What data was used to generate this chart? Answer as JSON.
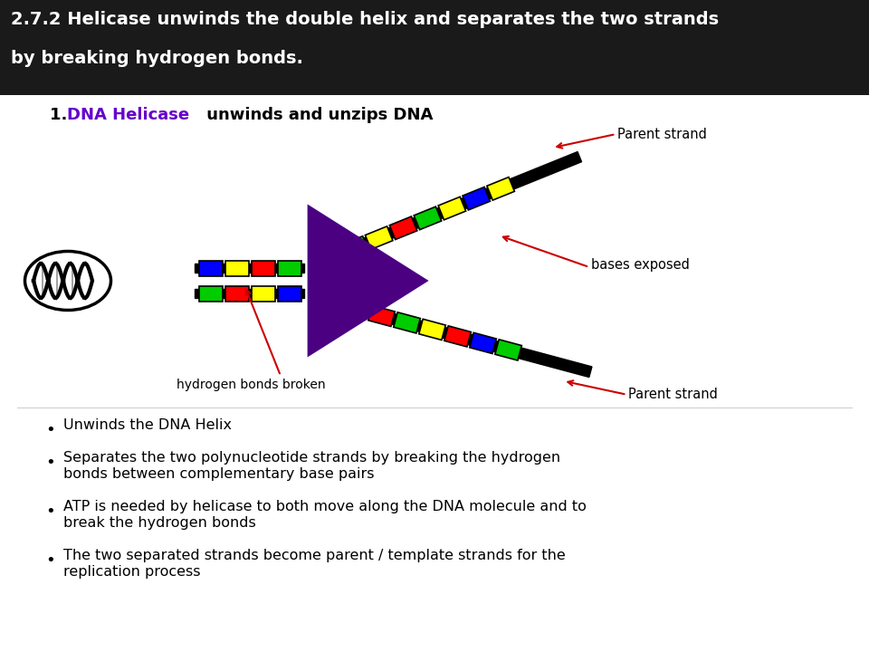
{
  "title_line1": "2.7.2 Helicase unwinds the double helix and separates the two strands",
  "title_line2": "by breaking hydrogen bonds.",
  "subtitle_plain1": "1. ",
  "subtitle_purple": "DNA Helicase",
  "subtitle_plain2": " unwinds and unzips DNA",
  "subtitle_color": "#6600cc",
  "title_bg": "#1a1a1a",
  "title_color": "#ffffff",
  "bullet_points": [
    "Unwinds the DNA Helix",
    "Separates the two polynucleotide strands by breaking the hydrogen\nbonds between complementary base pairs",
    "ATP is needed by helicase to both move along the DNA molecule and to\nbreak the hydrogen bonds",
    "The two separated strands become parent / template strands for the\nreplication process"
  ],
  "helicase_color": "#4b0082",
  "strand_color": "#000000",
  "annotation_color": "#cc0000",
  "bg_color": "#ffffff",
  "junction_colors_top": [
    "#0000ff",
    "#ffff00",
    "#ff0000",
    "#00cc00"
  ],
  "junction_colors_bot": [
    "#00cc00",
    "#ff0000",
    "#ffff00",
    "#0000ff"
  ],
  "top_strand_colors": [
    "#ff0000",
    "#00cc00",
    "#ffff00",
    "#ff0000",
    "#00cc00",
    "#ffff00",
    "#0000ff",
    "#ffff00"
  ],
  "bot_strand_colors": [
    "#ffff00",
    "#0000ff",
    "#ff0000",
    "#00cc00",
    "#ffff00",
    "#ff0000",
    "#0000ff",
    "#00cc00"
  ]
}
